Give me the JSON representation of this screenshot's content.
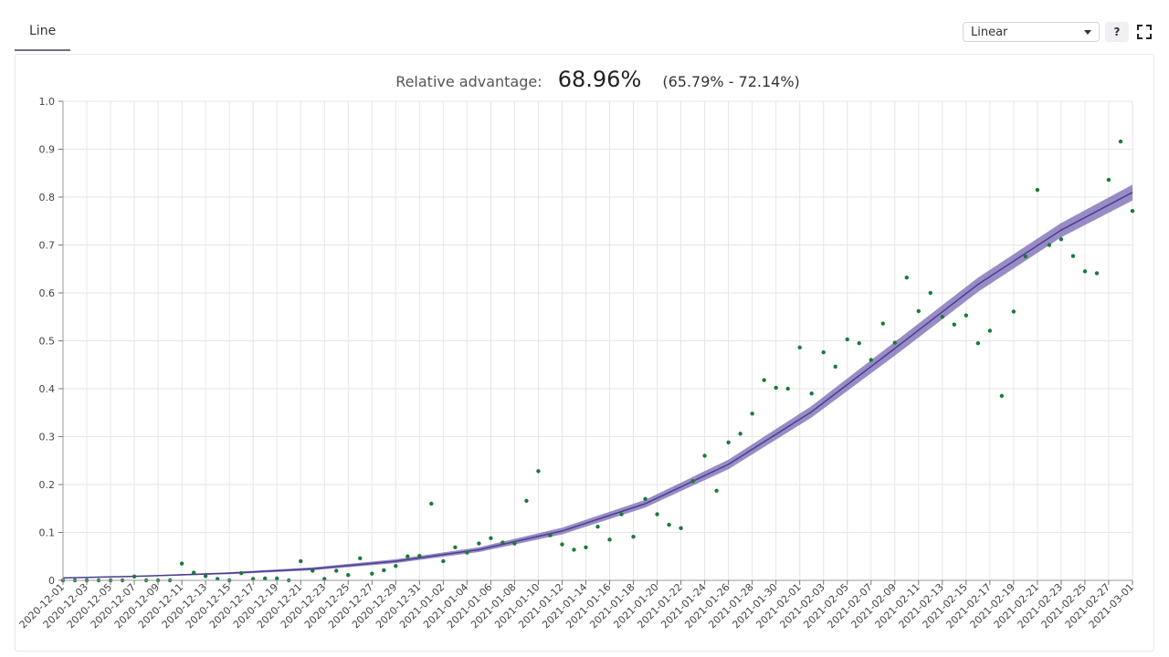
{
  "tabs": [
    {
      "label": "Line"
    }
  ],
  "scale_select": {
    "value": "Linear"
  },
  "help": {
    "label": "?"
  },
  "icons": {
    "dropdown": "chevron-down-icon",
    "fullscreen": "fullscreen-icon"
  },
  "colors": {
    "fit_line": "#4c3d8f",
    "ci_band": "#7f6fb8",
    "points": "#1b7a3a",
    "grid": "#e6e6e6"
  },
  "chart_data": {
    "type": "line",
    "title_prefix": "Relative advantage:",
    "title_value": "68.96%",
    "title_ci": "(65.79% - 72.14%)",
    "xlabel": "",
    "ylabel": "",
    "ylim": [
      0,
      1
    ],
    "yticks": [
      "0",
      "0.1",
      "0.2",
      "0.3",
      "0.4",
      "0.5",
      "0.6",
      "0.7",
      "0.8",
      "0.9",
      "1.0"
    ],
    "grid": true,
    "x_start": "2020-12-01",
    "x_end": "2021-03-01",
    "xticks": [
      "2020-12-01",
      "2020-12-03",
      "2020-12-05",
      "2020-12-07",
      "2020-12-09",
      "2020-12-11",
      "2020-12-13",
      "2020-12-15",
      "2020-12-17",
      "2020-12-19",
      "2020-12-21",
      "2020-12-23",
      "2020-12-25",
      "2020-12-27",
      "2020-12-29",
      "2020-12-31",
      "2021-01-02",
      "2021-01-04",
      "2021-01-06",
      "2021-01-08",
      "2021-01-10",
      "2021-01-12",
      "2021-01-14",
      "2021-01-16",
      "2021-01-18",
      "2021-01-20",
      "2021-01-22",
      "2021-01-24",
      "2021-01-26",
      "2021-01-28",
      "2021-01-30",
      "2021-02-01",
      "2021-02-03",
      "2021-02-05",
      "2021-02-07",
      "2021-02-09",
      "2021-02-11",
      "2021-02-13",
      "2021-02-15",
      "2021-02-17",
      "2021-02-19",
      "2021-02-21",
      "2021-02-23",
      "2021-02-25",
      "2021-02-27",
      "2021-03-01"
    ],
    "fit": {
      "x": [
        "2020-12-01",
        "2020-12-08",
        "2020-12-15",
        "2020-12-22",
        "2020-12-29",
        "2021-01-05",
        "2021-01-12",
        "2021-01-19",
        "2021-01-26",
        "2021-02-02",
        "2021-02-09",
        "2021-02-16",
        "2021-02-23",
        "2021-03-01"
      ],
      "y": [
        0.005,
        0.009,
        0.015,
        0.024,
        0.04,
        0.064,
        0.103,
        0.16,
        0.242,
        0.352,
        0.484,
        0.618,
        0.731,
        0.81
      ],
      "lower": [
        0.004,
        0.008,
        0.013,
        0.021,
        0.036,
        0.059,
        0.096,
        0.152,
        0.232,
        0.34,
        0.469,
        0.602,
        0.716,
        0.793
      ],
      "upper": [
        0.006,
        0.01,
        0.017,
        0.027,
        0.044,
        0.069,
        0.11,
        0.168,
        0.252,
        0.364,
        0.498,
        0.632,
        0.746,
        0.826
      ]
    },
    "points": {
      "x": [
        "2020-12-01",
        "2020-12-02",
        "2020-12-03",
        "2020-12-04",
        "2020-12-05",
        "2020-12-06",
        "2020-12-07",
        "2020-12-08",
        "2020-12-09",
        "2020-12-10",
        "2020-12-11",
        "2020-12-12",
        "2020-12-13",
        "2020-12-14",
        "2020-12-15",
        "2020-12-16",
        "2020-12-17",
        "2020-12-18",
        "2020-12-19",
        "2020-12-20",
        "2020-12-21",
        "2020-12-22",
        "2020-12-23",
        "2020-12-24",
        "2020-12-25",
        "2020-12-26",
        "2020-12-27",
        "2020-12-28",
        "2020-12-29",
        "2020-12-30",
        "2020-12-31",
        "2021-01-01",
        "2021-01-02",
        "2021-01-03",
        "2021-01-04",
        "2021-01-05",
        "2021-01-06",
        "2021-01-07",
        "2021-01-08",
        "2021-01-09",
        "2021-01-10",
        "2021-01-11",
        "2021-01-12",
        "2021-01-13",
        "2021-01-14",
        "2021-01-15",
        "2021-01-16",
        "2021-01-17",
        "2021-01-18",
        "2021-01-19",
        "2021-01-20",
        "2021-01-21",
        "2021-01-22",
        "2021-01-23",
        "2021-01-24",
        "2021-01-25",
        "2021-01-26",
        "2021-01-27",
        "2021-01-28",
        "2021-01-29",
        "2021-01-30",
        "2021-01-31",
        "2021-02-01",
        "2021-02-02",
        "2021-02-03",
        "2021-02-04",
        "2021-02-05",
        "2021-02-06",
        "2021-02-07",
        "2021-02-08",
        "2021-02-09",
        "2021-02-10",
        "2021-02-11",
        "2021-02-12",
        "2021-02-13",
        "2021-02-14",
        "2021-02-15",
        "2021-02-16",
        "2021-02-17",
        "2021-02-18",
        "2021-02-19",
        "2021-02-20",
        "2021-02-21",
        "2021-02-22",
        "2021-02-23",
        "2021-02-24",
        "2021-02-25",
        "2021-02-26",
        "2021-02-27",
        "2021-02-28",
        "2021-03-01"
      ],
      "y": [
        0,
        0,
        0,
        0,
        0,
        0,
        0.008,
        0,
        0,
        0,
        0.035,
        0.016,
        0.009,
        0.003,
        0,
        0.015,
        0.003,
        0.004,
        0.004,
        0,
        0.04,
        0.02,
        0.003,
        0.02,
        0.011,
        0.046,
        0.014,
        0.021,
        0.03,
        0.05,
        0.051,
        0.16,
        0.04,
        0.069,
        0.058,
        0.077,
        0.088,
        0.079,
        0.077,
        0.166,
        0.228,
        0.094,
        0.075,
        0.064,
        0.069,
        0.112,
        0.085,
        0.138,
        0.091,
        0.17,
        0.138,
        0.116,
        0.109,
        0.207,
        0.26,
        0.187,
        0.288,
        0.306,
        0.348,
        0.418,
        0.402,
        0.4,
        0.486,
        0.39,
        0.476,
        0.446,
        0.503,
        0.495,
        0.46,
        0.536,
        0.496,
        0.632,
        0.562,
        0.6,
        0.55,
        0.534,
        0.553,
        0.495,
        0.521,
        0.385,
        0.561,
        0.676,
        0.815,
        0.7,
        0.712,
        0.677,
        0.645,
        0.641,
        0.836,
        0.916,
        0.771
      ]
    }
  }
}
